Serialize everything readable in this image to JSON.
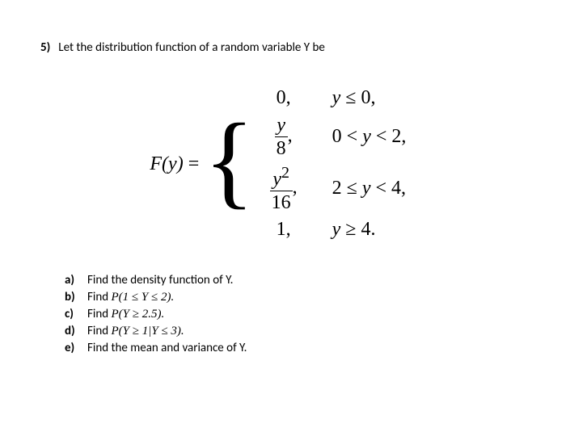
{
  "question": {
    "number": "5)",
    "prompt": "Let the distribution function of a random variable Y be"
  },
  "equation": {
    "lhs_F": "F",
    "lhs_y": "y",
    "equals": "=",
    "cases": [
      {
        "value_plain": "0,",
        "cond_prefix": "y",
        "cond_rest": " ≤ 0,"
      },
      {
        "frac_num": "y",
        "frac_den": "8",
        "trail": ",",
        "cond_prefix": "0 < ",
        "cond_mid": "y",
        "cond_rest": " < 2,"
      },
      {
        "frac_num": "y",
        "frac_num_sup": "2",
        "frac_den": "16",
        "trail": ",",
        "cond_prefix": "2 ≤ ",
        "cond_mid": "y",
        "cond_rest": " < 4,"
      },
      {
        "value_plain": "1,",
        "cond_prefix": "y",
        "cond_rest": " ≥ 4."
      }
    ]
  },
  "subparts": [
    {
      "label": "a)",
      "text_before": "Find the density function of Y."
    },
    {
      "label": "b)",
      "text_before": "Find ",
      "math": "P(1 ≤ Y ≤ 2).",
      "text_after": ""
    },
    {
      "label": "c)",
      "text_before": "Find ",
      "math": "P(Y ≥ 2.5).",
      "text_after": ""
    },
    {
      "label": "d)",
      "text_before": "Find ",
      "math": "P(Y ≥ 1|Y ≤ 3).",
      "text_after": ""
    },
    {
      "label": "e)",
      "text_before": "Find the mean and variance of Y."
    }
  ]
}
